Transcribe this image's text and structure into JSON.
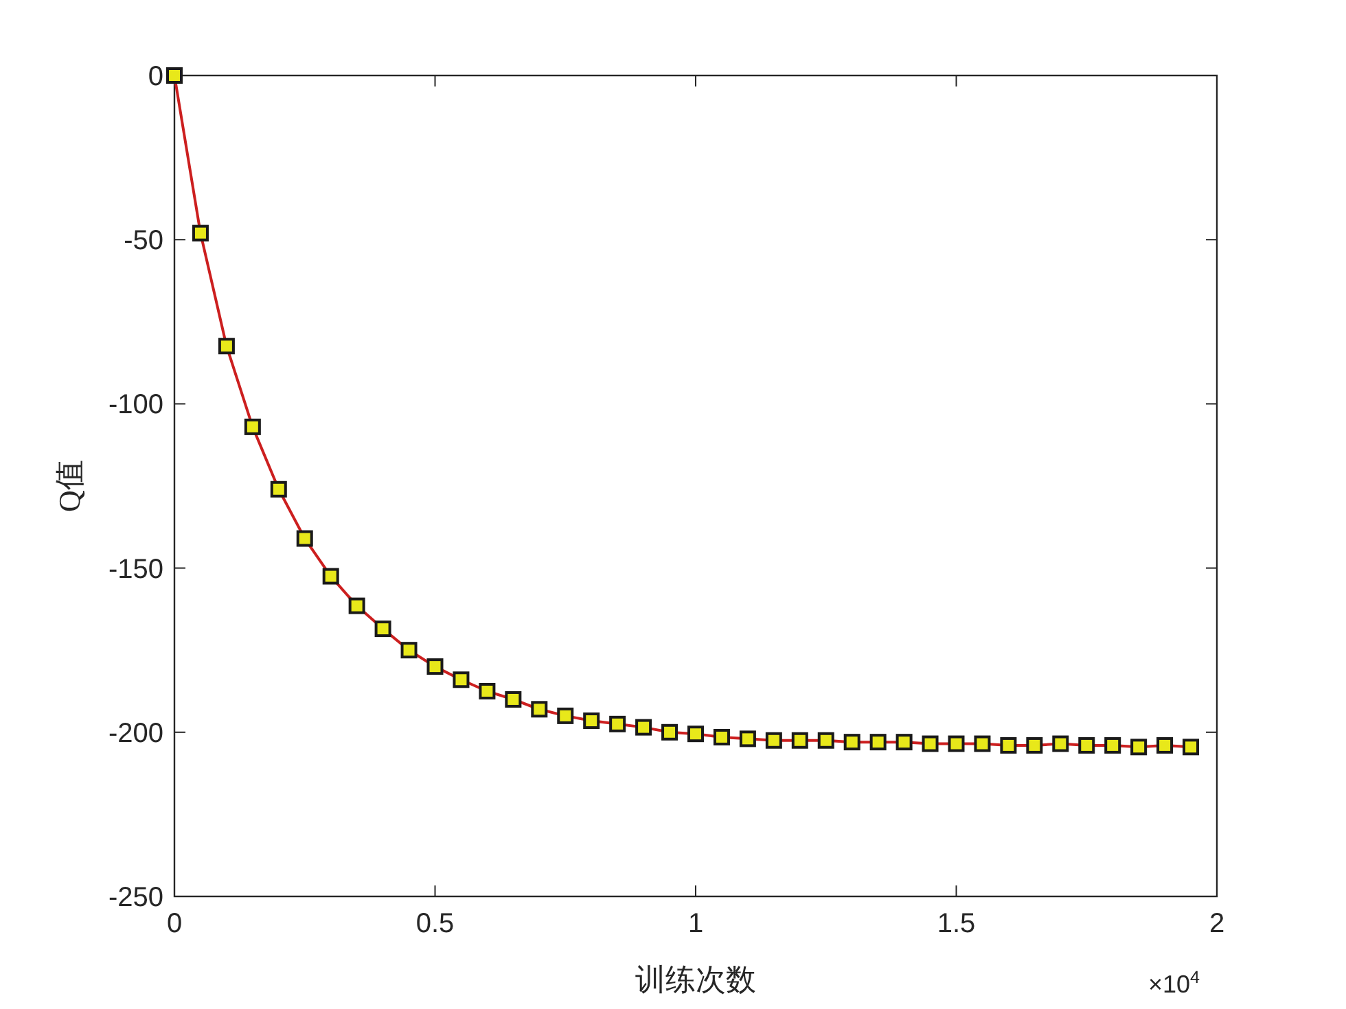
{
  "chart_data": {
    "type": "line",
    "xlabel": "训练次数",
    "ylabel": "Q值",
    "annotations": [
      "×10$^{4}$"
    ],
    "x": [
      0,
      0.05,
      0.1,
      0.15,
      0.2,
      0.25,
      0.3,
      0.35,
      0.4,
      0.45,
      0.5,
      0.55,
      0.6,
      0.65,
      0.7,
      0.75,
      0.8,
      0.85,
      0.9,
      0.95,
      1.0,
      1.05,
      1.1,
      1.15,
      1.2,
      1.25,
      1.3,
      1.35,
      1.4,
      1.45,
      1.5,
      1.55,
      1.6,
      1.65,
      1.7,
      1.75,
      1.8,
      1.85,
      1.9,
      1.95
    ],
    "series": [
      {
        "color": "#cc1f1f",
        "values": [
          0,
          -48,
          -82.4,
          -107,
          -126,
          -141,
          -152.5,
          -161.5,
          -168.5,
          -175,
          -180,
          -184,
          -187.5,
          -190,
          -193,
          -195,
          -196.5,
          -197.5,
          -198.5,
          -200,
          -200.5,
          -201.5,
          -202,
          -202.5,
          -202.5,
          -202.5,
          -203,
          -203,
          -203,
          -203.5,
          -203.5,
          -203.5,
          -204,
          -204,
          -203.5,
          -204,
          -204,
          -204.5,
          -204,
          -204.5
        ]
      }
    ],
    "xlim": [
      0,
      2
    ],
    "xticks": [
      0,
      0.5,
      1,
      1.5,
      2
    ],
    "ylim": [
      -250,
      0
    ],
    "yticks": [
      -250,
      -200,
      -150,
      -100,
      -50,
      0
    ],
    "marker": "square",
    "line_style": "solid",
    "grid": false
  }
}
